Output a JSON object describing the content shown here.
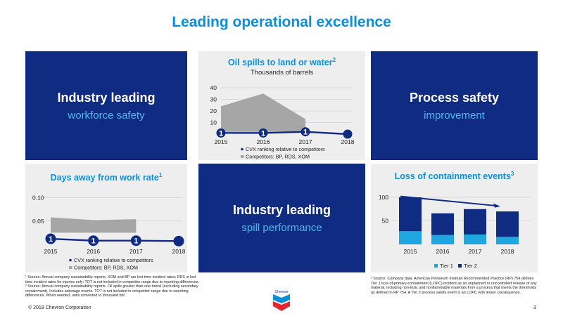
{
  "page": {
    "title": "Leading operational excellence",
    "copyright": "© 2019 Chevron Corporation",
    "page_number": "3",
    "logo_text": "Chevron"
  },
  "tiles": {
    "workforce": {
      "big": "Industry leading",
      "sub": "workforce safety"
    },
    "process": {
      "big": "Process safety",
      "sub": "improvement"
    },
    "spill": {
      "big": "Industry leading",
      "sub": "spill performance"
    }
  },
  "oil_chart": {
    "title": "Oil spills to land or water",
    "title_sup": "2",
    "subtitle": "Thousands of barrels"
  },
  "days_chart": {
    "title": "Days away from work rate",
    "title_sup": "1"
  },
  "loc_chart": {
    "title": "Loss of containment events",
    "title_sup": "3"
  },
  "footnotes": {
    "left_1": "¹ Source: Annual company sustainability reports. XOM and BP are lost time incident rates; RDS is lost time incident rates for injuries only; TOT is not included in competitor range due to reporting differences.",
    "left_2": "² Source: Annual company sustainability reports. Oil spills greater than one barrel (excluding secondary containment). Includes sabotage events. TOT is not included in competitor range due to reporting differences. When needed, units converted to thousand bbl.",
    "right_3": "³ Source: Company data. American Petroleum Institute Recommended Practice (RP) 754 defines Tier 1 loss-of-primary-containment (LOPC) incident as an unplanned or uncontrolled release of any material, including non-toxic and nonflammable materials from a process that meets the thresholds as defined in RP 754. A Tier 2 process safety event is an LOPC with lesser consequence."
  },
  "colors": {
    "navy": "#0f2b82",
    "accent_blue": "#0b8fd6",
    "light_blue": "#1fa5e0",
    "gray_band": "#a6a6a6",
    "panel_bg": "#eeeeee"
  },
  "chart_data": [
    {
      "id": "oil-spills",
      "type": "area",
      "title": "Oil spills to land or water",
      "subtitle": "Thousands of barrels",
      "x": [
        "2015",
        "2016",
        "2017",
        "2018"
      ],
      "yticks": [
        "10",
        "20",
        "30",
        "40"
      ],
      "ylim": [
        0,
        40
      ],
      "series": [
        {
          "name": "Competitors: BP, RDS, XOM",
          "type": "range",
          "low": [
            2,
            2,
            2
          ],
          "high": [
            24,
            35,
            13
          ]
        },
        {
          "name": "CVX ranking relative to competitors",
          "type": "line",
          "values": [
            1,
            1,
            2,
            0
          ],
          "markers": [
            "1",
            "1",
            "1",
            ""
          ]
        }
      ],
      "legend": [
        "CVX ranking relative to competitors",
        "Competitors: BP, RDS, XOM"
      ]
    },
    {
      "id": "days-away",
      "type": "area",
      "title": "Days away from work rate",
      "x": [
        "2015",
        "2016",
        "2017",
        "2018"
      ],
      "yticks": [
        "0.05",
        "0.10"
      ],
      "ylim": [
        0,
        0.11
      ],
      "series": [
        {
          "name": "Competitors: BP, RDS, XOM",
          "type": "range",
          "low": [
            0.025,
            0.025,
            0.025
          ],
          "high": [
            0.058,
            0.052,
            0.054
          ]
        },
        {
          "name": "CVX ranking relative to competitors",
          "type": "line",
          "values": [
            0.012,
            0.008,
            0.008,
            0.007
          ],
          "markers": [
            "1",
            "1",
            "1",
            ""
          ]
        }
      ],
      "legend": [
        "CVX ranking relative to competitors",
        "Competitors: BP, RDS, XOM"
      ]
    },
    {
      "id": "loss-of-containment",
      "type": "bar",
      "stacked": true,
      "title": "Loss of containment events",
      "categories": [
        "2015",
        "2016",
        "2017",
        "2018"
      ],
      "yticks": [
        "50",
        "100"
      ],
      "ylim": [
        0,
        120
      ],
      "series": [
        {
          "name": "Tier 1",
          "color": "#1fa5e0",
          "values": [
            28,
            20,
            21,
            16
          ]
        },
        {
          "name": "Tier 2",
          "color": "#0f2b82",
          "values": [
            72,
            46,
            54,
            54
          ]
        }
      ],
      "legend": [
        "Tier 1",
        "Tier 2"
      ],
      "annotation": "downward trend arrow"
    }
  ]
}
